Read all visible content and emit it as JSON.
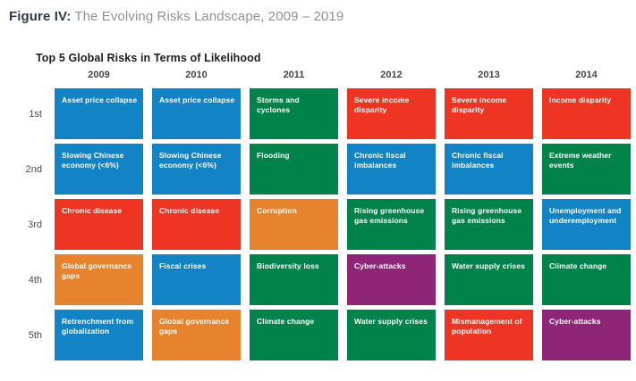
{
  "figure": {
    "label": "Figure IV:",
    "title": "The Evolving Risks Landscape, 2009 – 2019"
  },
  "chart_data": {
    "type": "table",
    "title": "Top 5 Global Risks in Terms of Likelihood",
    "columns": [
      "2009",
      "2010",
      "2011",
      "2012",
      "2013",
      "2014"
    ],
    "row_labels": [
      "1st",
      "2nd",
      "3rd",
      "4th",
      "5th"
    ],
    "category_colors": {
      "economic": "#1283c4",
      "environmental": "#00834b",
      "societal": "#ee3524",
      "geopolitical": "#e8832d",
      "technological": "#8e2577"
    },
    "rows": [
      {
        "rank": "1st",
        "cells": [
          {
            "label": "Asset price collapse",
            "category": "economic"
          },
          {
            "label": "Asset price collapse",
            "category": "economic"
          },
          {
            "label": "Storms and cyclones",
            "category": "environmental"
          },
          {
            "label": "Severe income disparity",
            "category": "societal"
          },
          {
            "label": "Severe income disparity",
            "category": "societal"
          },
          {
            "label": "Income disparity",
            "category": "societal"
          }
        ]
      },
      {
        "rank": "2nd",
        "cells": [
          {
            "label": "Slowing Chinese economy (<6%)",
            "category": "economic"
          },
          {
            "label": "Slowing Chinese economy (<6%)",
            "category": "economic"
          },
          {
            "label": "Flooding",
            "category": "environmental"
          },
          {
            "label": "Chronic fiscal imbalances",
            "category": "economic"
          },
          {
            "label": "Chronic fiscal imbalances",
            "category": "economic"
          },
          {
            "label": "Extreme weather events",
            "category": "environmental"
          }
        ]
      },
      {
        "rank": "3rd",
        "cells": [
          {
            "label": "Chronic disease",
            "category": "societal"
          },
          {
            "label": "Chronic disease",
            "category": "societal"
          },
          {
            "label": "Corruption",
            "category": "geopolitical"
          },
          {
            "label": "Rising greenhouse gas emissions",
            "category": "environmental"
          },
          {
            "label": "Rising greenhouse gas emissions",
            "category": "environmental"
          },
          {
            "label": "Unemployment and underemployment",
            "category": "economic"
          }
        ]
      },
      {
        "rank": "4th",
        "cells": [
          {
            "label": "Global governance gaps",
            "category": "geopolitical"
          },
          {
            "label": "Fiscal crises",
            "category": "economic"
          },
          {
            "label": "Biodiversity loss",
            "category": "environmental"
          },
          {
            "label": "Cyber-attacks",
            "category": "technological"
          },
          {
            "label": "Water supply crises",
            "category": "environmental"
          },
          {
            "label": "Climate change",
            "category": "environmental"
          }
        ]
      },
      {
        "rank": "5th",
        "cells": [
          {
            "label": "Retrenchment from globalization",
            "category": "economic"
          },
          {
            "label": "Global governance gaps",
            "category": "geopolitical"
          },
          {
            "label": "Climate change",
            "category": "environmental"
          },
          {
            "label": "Water supply crises",
            "category": "environmental"
          },
          {
            "label": "Mismanagement of population",
            "category": "societal"
          },
          {
            "label": "Cyber-attacks",
            "category": "technological"
          }
        ]
      }
    ]
  }
}
